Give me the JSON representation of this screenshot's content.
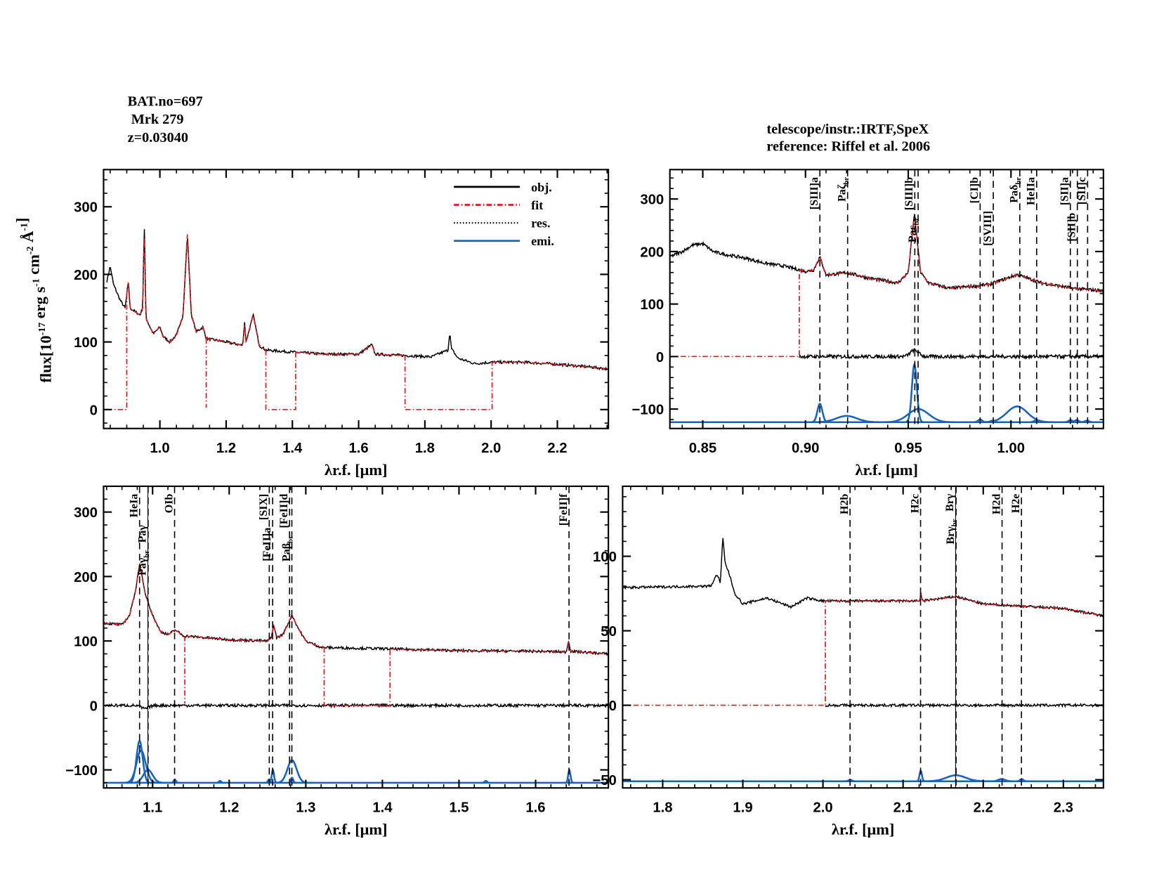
{
  "header": {
    "bat": "BAT.no=697",
    "name": " Mrk 279",
    "z": "z=0.03040",
    "telescope": "telescope/instr.:IRTF,SpeX",
    "reference": "reference: Riffel et al. 2006"
  },
  "colors": {
    "obj": "#000000",
    "fit": "#e8141a",
    "res": "#000000",
    "emi": "#1565c0"
  },
  "ylabel": "flux[10^-17 erg s^-1 cm^-2 Å^-1]",
  "legend": [
    {
      "label": "obj.",
      "style": "obj"
    },
    {
      "label": "fit",
      "style": "fit"
    },
    {
      "label": "res.",
      "style": "res"
    },
    {
      "label": "emi.",
      "style": "emi"
    }
  ],
  "chart_data": [
    {
      "type": "line",
      "panel": "full-spectrum",
      "xlabel": "λr.f. [μm]",
      "xlim": [
        0.83,
        2.354
      ],
      "ylim": [
        -28,
        355
      ],
      "xticks": [
        1.0,
        1.2,
        1.4,
        1.6,
        1.8,
        2.0,
        2.2
      ],
      "xminor": 0.05,
      "yticks": [
        0,
        100,
        200,
        300
      ],
      "yminor": 20,
      "noise": 2,
      "obj": [
        [
          0.84,
          190
        ],
        [
          0.85,
          212
        ],
        [
          0.86,
          185
        ],
        [
          0.88,
          162
        ],
        [
          0.895,
          150
        ],
        [
          0.905,
          190
        ],
        [
          0.91,
          150
        ],
        [
          0.94,
          140
        ],
        [
          0.948,
          150
        ],
        [
          0.953,
          272
        ],
        [
          0.958,
          135
        ],
        [
          0.98,
          112
        ],
        [
          1.0,
          122
        ],
        [
          1.01,
          108
        ],
        [
          1.03,
          100
        ],
        [
          1.05,
          110
        ],
        [
          1.07,
          140
        ],
        [
          1.083,
          260
        ],
        [
          1.095,
          140
        ],
        [
          1.11,
          115
        ],
        [
          1.13,
          122
        ],
        [
          1.14,
          105
        ],
        [
          1.2,
          100
        ],
        [
          1.25,
          95
        ],
        [
          1.256,
          130
        ],
        [
          1.26,
          100
        ],
        [
          1.282,
          140
        ],
        [
          1.3,
          95
        ],
        [
          1.32,
          88
        ],
        [
          1.4,
          85
        ],
        [
          1.5,
          82
        ],
        [
          1.6,
          82
        ],
        [
          1.64,
          96
        ],
        [
          1.65,
          82
        ],
        [
          1.74,
          80
        ],
        [
          1.82,
          78
        ],
        [
          1.87,
          88
        ],
        [
          1.875,
          115
        ],
        [
          1.88,
          90
        ],
        [
          1.9,
          76
        ],
        [
          1.95,
          68
        ],
        [
          2.0,
          70
        ],
        [
          2.1,
          70
        ],
        [
          2.2,
          67
        ],
        [
          2.3,
          63
        ],
        [
          2.35,
          60
        ]
      ],
      "fit_follow": [
        [
          0.9,
          1.14
        ],
        [
          1.14,
          1.32
        ],
        [
          1.41,
          1.74
        ],
        [
          2.003,
          2.35
        ]
      ],
      "fit_zero": [
        [
          0.84,
          0.9
        ],
        [
          1.32,
          1.41
        ],
        [
          1.74,
          2.003
        ]
      ],
      "fit_drops": [
        1.14
      ],
      "residual": null,
      "emission": null,
      "lines": []
    },
    {
      "type": "line",
      "panel": "zoom-0.83-1.05",
      "xlabel": "λr.f. [μm]",
      "xlim": [
        0.834,
        1.045
      ],
      "ylim": [
        -137,
        356
      ],
      "xticks": [
        0.85,
        0.9,
        0.95,
        1.0
      ],
      "xminor": 0.01,
      "yticks": [
        -100,
        0,
        100,
        200,
        300
      ],
      "yminor": 20,
      "noise": 3,
      "obj": [
        [
          0.834,
          190
        ],
        [
          0.84,
          200
        ],
        [
          0.845,
          212
        ],
        [
          0.85,
          215
        ],
        [
          0.855,
          200
        ],
        [
          0.86,
          195
        ],
        [
          0.87,
          188
        ],
        [
          0.88,
          178
        ],
        [
          0.89,
          172
        ],
        [
          0.9,
          162
        ],
        [
          0.904,
          165
        ],
        [
          0.907,
          190
        ],
        [
          0.91,
          155
        ],
        [
          0.92,
          160
        ],
        [
          0.93,
          150
        ],
        [
          0.945,
          140
        ],
        [
          0.95,
          160
        ],
        [
          0.953,
          272
        ],
        [
          0.956,
          160
        ],
        [
          0.96,
          140
        ],
        [
          0.97,
          130
        ],
        [
          0.985,
          135
        ],
        [
          0.99,
          138
        ],
        [
          1.003,
          156
        ],
        [
          1.015,
          140
        ],
        [
          1.03,
          130
        ],
        [
          1.045,
          125
        ]
      ],
      "fit_follow": [
        [
          0.897,
          1.045
        ]
      ],
      "fit_zero": [
        [
          0.834,
          0.897
        ]
      ],
      "fit_drops": [],
      "residual": {
        "range": [
          0.897,
          1.045
        ],
        "bumps": [
          [
            0.953,
            12,
            0.002
          ]
        ]
      },
      "emission": {
        "baseline": -125,
        "components": [
          [
            0.907,
            35,
            0.0012
          ],
          [
            0.92,
            12,
            0.005
          ],
          [
            0.953,
            110,
            0.0012
          ],
          [
            0.955,
            25,
            0.005
          ],
          [
            0.985,
            5,
            0.001
          ],
          [
            0.991,
            3,
            0.001
          ],
          [
            1.003,
            30,
            0.005
          ],
          [
            1.012,
            3,
            0.001
          ],
          [
            1.029,
            4,
            0.001
          ],
          [
            1.032,
            4,
            0.001
          ],
          [
            1.037,
            3,
            0.001
          ]
        ]
      },
      "lines": [
        {
          "label": "[SIII]a",
          "sub": "",
          "x": 0.907,
          "style": "dash"
        },
        {
          "label": "Paζ",
          "sub": "br",
          "x": 0.9205,
          "style": "dash"
        },
        {
          "label": "[SIII]b",
          "sub": "",
          "x": 0.9532,
          "style": "dash"
        },
        {
          "label": "Paε",
          "sub": "br",
          "x": 0.9548,
          "style": "dash"
        },
        {
          "label": "[CI]b",
          "sub": "",
          "x": 0.985,
          "style": "dash"
        },
        {
          "label": "[SVIII]",
          "sub": "",
          "x": 0.9914,
          "style": "dash"
        },
        {
          "label": "Paδ",
          "sub": "br",
          "x": 1.0043,
          "style": "dash"
        },
        {
          "label": "HeIIa",
          "sub": "",
          "x": 1.0125,
          "style": "dash"
        },
        {
          "label": "[SII]a",
          "sub": "",
          "x": 1.0289,
          "style": "dash"
        },
        {
          "label": "[SII]b",
          "sub": "",
          "x": 1.0323,
          "style": "dash"
        },
        {
          "label": "[SII]c",
          "sub": "",
          "x": 1.0373,
          "style": "dash"
        }
      ]
    },
    {
      "type": "line",
      "panel": "zoom-1.04-1.69",
      "xlabel": "λr.f. [μm]",
      "xlim": [
        1.036,
        1.695
      ],
      "ylim": [
        -128,
        340
      ],
      "xticks": [
        1.1,
        1.2,
        1.3,
        1.4,
        1.5,
        1.6
      ],
      "xminor": 0.02,
      "yticks": [
        -100,
        0,
        100,
        200,
        300
      ],
      "yminor": 20,
      "noise": 2,
      "obj": [
        [
          1.036,
          128
        ],
        [
          1.06,
          125
        ],
        [
          1.07,
          140
        ],
        [
          1.078,
          180
        ],
        [
          1.083,
          220
        ],
        [
          1.09,
          175
        ],
        [
          1.1,
          140
        ],
        [
          1.11,
          115
        ],
        [
          1.12,
          110
        ],
        [
          1.13,
          117
        ],
        [
          1.14,
          108
        ],
        [
          1.2,
          102
        ],
        [
          1.25,
          100
        ],
        [
          1.255,
          105
        ],
        [
          1.258,
          125
        ],
        [
          1.262,
          105
        ],
        [
          1.27,
          110
        ],
        [
          1.282,
          140
        ],
        [
          1.29,
          120
        ],
        [
          1.3,
          100
        ],
        [
          1.32,
          90
        ],
        [
          1.4,
          88
        ],
        [
          1.5,
          85
        ],
        [
          1.6,
          84
        ],
        [
          1.64,
          83
        ],
        [
          1.643,
          100
        ],
        [
          1.646,
          84
        ],
        [
          1.695,
          80
        ]
      ],
      "fit_follow": [
        [
          1.036,
          1.142
        ],
        [
          1.145,
          1.324
        ],
        [
          1.41,
          1.695
        ]
      ],
      "fit_zero": [
        [
          1.324,
          1.41
        ]
      ],
      "fit_drops": [
        1.142
      ],
      "residual": {
        "range": [
          1.036,
          1.695
        ],
        "bumps": [
          [
            1.09,
            -5,
            0.005
          ]
        ]
      },
      "emission": {
        "baseline": -120,
        "components": [
          [
            1.083,
            65,
            0.004
          ],
          [
            1.085,
            50,
            0.006
          ],
          [
            1.094,
            20,
            0.006
          ],
          [
            1.129,
            5,
            0.0015
          ],
          [
            1.188,
            3,
            0.0015
          ],
          [
            1.252,
            5,
            0.0015
          ],
          [
            1.257,
            20,
            0.0015
          ],
          [
            1.282,
            35,
            0.006
          ],
          [
            1.282,
            8,
            0.0015
          ],
          [
            1.535,
            3,
            0.0015
          ],
          [
            1.644,
            20,
            0.0015
          ]
        ]
      },
      "lines": [
        {
          "label": "HeIa",
          "sub": "",
          "x": 1.083,
          "style": "dash"
        },
        {
          "label": "Paγ",
          "sub": "",
          "x": 1.0938,
          "style": "solid"
        },
        {
          "label": "Paγ",
          "sub": "br",
          "x": 1.0941,
          "style": "dash"
        },
        {
          "label": "OIb",
          "sub": "",
          "x": 1.1287,
          "style": "dash"
        },
        {
          "label": "[SIX]",
          "sub": "",
          "x": 1.2523,
          "style": "dash"
        },
        {
          "label": "[FeII]a",
          "sub": "",
          "x": 1.2567,
          "style": "dash"
        },
        {
          "label": "[FeII]d",
          "sub": "",
          "x": 1.2788,
          "style": "dash"
        },
        {
          "label": "Paβ",
          "sub": "br",
          "x": 1.2818,
          "style": "dash"
        },
        {
          "label": "[FeII]f",
          "sub": "",
          "x": 1.6436,
          "style": "dash"
        }
      ]
    },
    {
      "type": "line",
      "panel": "zoom-1.75-2.35",
      "xlabel": "λr.f. [μm]",
      "xlim": [
        1.75,
        2.35
      ],
      "ylim": [
        -55.5,
        147
      ],
      "xticks": [
        1.8,
        1.9,
        2.0,
        2.1,
        2.2,
        2.3
      ],
      "xminor": 0.02,
      "yticks": [
        -50,
        0,
        50,
        100
      ],
      "yminor": 10,
      "noise": 0.8,
      "obj": [
        [
          1.75,
          79
        ],
        [
          1.86,
          80
        ],
        [
          1.868,
          88
        ],
        [
          1.872,
          82
        ],
        [
          1.875,
          113
        ],
        [
          1.878,
          95
        ],
        [
          1.882,
          90
        ],
        [
          1.89,
          75
        ],
        [
          1.9,
          68
        ],
        [
          1.93,
          72
        ],
        [
          1.96,
          66
        ],
        [
          1.98,
          72
        ],
        [
          2.0,
          70
        ],
        [
          2.1,
          70
        ],
        [
          2.121,
          70
        ],
        [
          2.122,
          76
        ],
        [
          2.124,
          70
        ],
        [
          2.166,
          73
        ],
        [
          2.2,
          68
        ],
        [
          2.3,
          65
        ],
        [
          2.35,
          60
        ]
      ],
      "fit_follow": [
        [
          2.003,
          2.35
        ]
      ],
      "fit_zero": [
        [
          1.75,
          2.003
        ]
      ],
      "fit_drops": [],
      "residual": {
        "range": [
          2.003,
          2.35
        ],
        "bumps": []
      },
      "emission": {
        "baseline": -51,
        "components": [
          [
            2.034,
            1,
            0.002
          ],
          [
            2.122,
            7,
            0.0015
          ],
          [
            2.166,
            4,
            0.012
          ],
          [
            2.223,
            1.5,
            0.004
          ],
          [
            2.248,
            1.5,
            0.002
          ]
        ]
      },
      "lines": [
        {
          "label": "H2b",
          "sub": "",
          "x": 2.0338,
          "style": "dash"
        },
        {
          "label": "H2c",
          "sub": "",
          "x": 2.1218,
          "style": "dash"
        },
        {
          "label": "Brγ",
          "sub": "",
          "x": 2.1655,
          "style": "solid"
        },
        {
          "label": "Brγ",
          "sub": "br",
          "x": 2.1661,
          "style": "dash"
        },
        {
          "label": "H2d",
          "sub": "",
          "x": 2.2235,
          "style": "dash"
        },
        {
          "label": "H2e",
          "sub": "",
          "x": 2.2477,
          "style": "dash"
        }
      ]
    }
  ]
}
